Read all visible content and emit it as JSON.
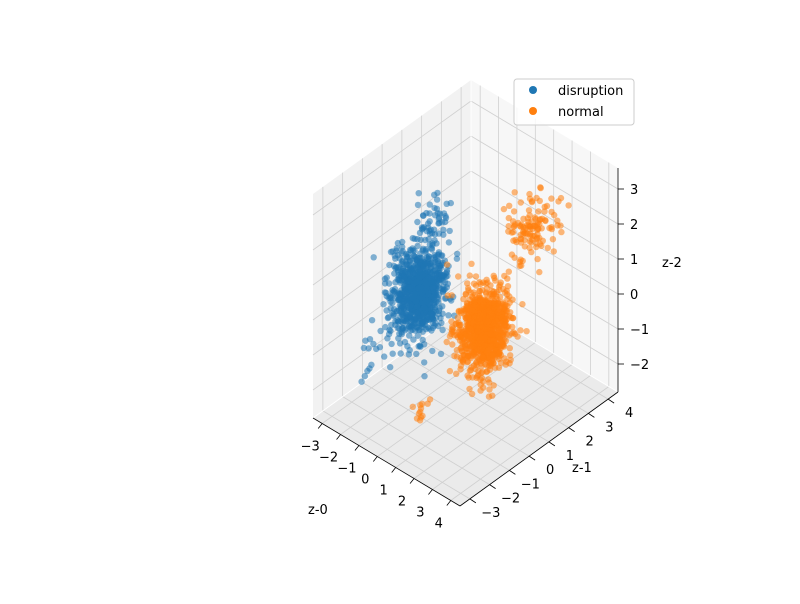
{
  "chart_data": {
    "type": "scatter",
    "projection": "3d",
    "title": "",
    "xlabel": "z-0",
    "ylabel": "z-1",
    "zlabel": "z-2",
    "xlim": [
      -3.5,
      4.5
    ],
    "ylim": [
      -3.5,
      4.5
    ],
    "zlim": [
      -2.8,
      3.6
    ],
    "xticks": [
      -3,
      -2,
      -1,
      0,
      1,
      2,
      3,
      4
    ],
    "yticks": [
      -3,
      -2,
      -1,
      0,
      1,
      2,
      3,
      4
    ],
    "zticks": [
      -2,
      -1,
      0,
      1,
      2,
      3
    ],
    "grid": true,
    "legend": "top-right",
    "series": [
      {
        "name": "disruption",
        "color": "#1f77b4",
        "clusters": [
          {
            "center": [
              -1.2,
              -0.3,
              0.2
            ],
            "spread": [
              0.45,
              0.55,
              0.6
            ],
            "count": 900
          },
          {
            "center": [
              -1.3,
              0.6,
              2.0
            ],
            "spread": [
              0.25,
              0.25,
              0.35
            ],
            "count": 40
          },
          {
            "center": [
              -2.2,
              -1.6,
              -1.4
            ],
            "spread": [
              0.3,
              0.3,
              0.3
            ],
            "count": 12
          }
        ]
      },
      {
        "name": "normal",
        "color": "#ff7f0e",
        "clusters": [
          {
            "center": [
              1.4,
              0.6,
              -0.4
            ],
            "spread": [
              0.45,
              0.5,
              0.55
            ],
            "count": 1000
          },
          {
            "center": [
              1.9,
              2.6,
              1.8
            ],
            "spread": [
              0.35,
              0.5,
              0.45
            ],
            "count": 120
          },
          {
            "center": [
              0.6,
              -1.8,
              -2.0
            ],
            "spread": [
              0.15,
              0.15,
              0.15
            ],
            "count": 12
          }
        ]
      }
    ]
  }
}
